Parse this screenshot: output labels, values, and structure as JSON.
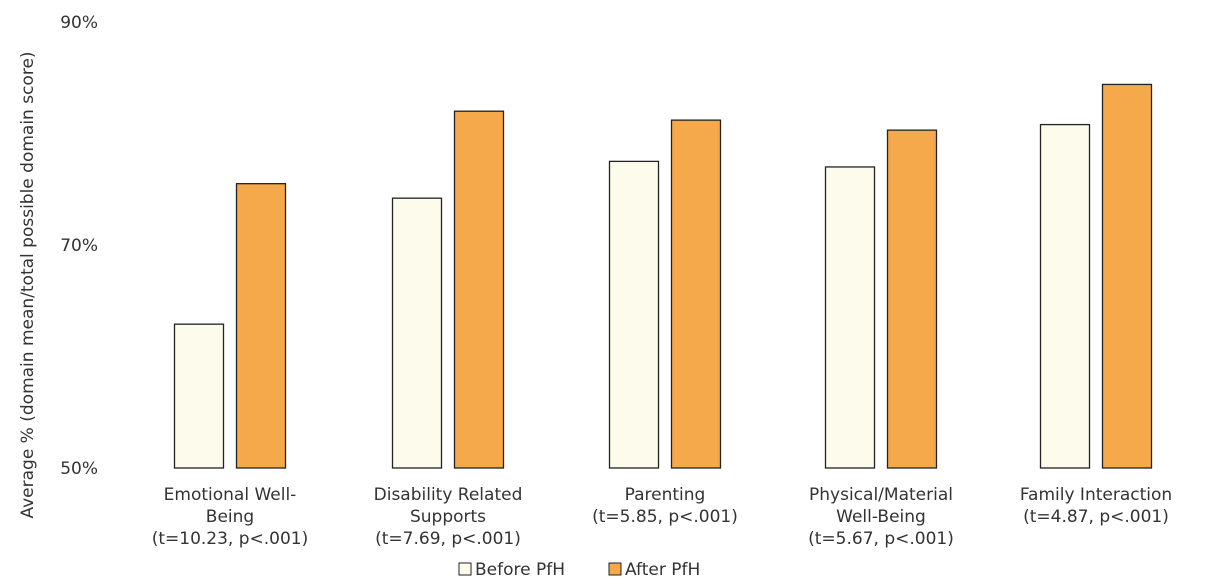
{
  "chart_data": {
    "type": "bar",
    "ylabel": "Average % (domain mean/total possible domain score)",
    "ylim": [
      50,
      90
    ],
    "yticks": [
      "50%",
      "70%",
      "90%"
    ],
    "ytick_values": [
      50,
      70,
      90
    ],
    "grid": false,
    "legend_position": "bottom-center",
    "categories": [
      [
        "Emotional Well-",
        "Being",
        "(t=10.23, p<.001)"
      ],
      [
        "Disability Related",
        "Supports",
        "(t=7.69, p<.001)"
      ],
      [
        "Parenting",
        "(t=5.85, p<.001)"
      ],
      [
        "Physical/Material",
        "Well-Being",
        "(t=5.67, p<.001)"
      ],
      [
        "Family Interaction",
        "(t=4.87, p<.001)"
      ]
    ],
    "series": [
      {
        "name": "Before PfH",
        "color": "#fdfcec",
        "values": [
          62.9,
          74.2,
          77.5,
          77.0,
          80.8
        ]
      },
      {
        "name": "After PfH",
        "color": "#f5a94a",
        "values": [
          75.5,
          82.0,
          81.2,
          80.3,
          84.4
        ]
      }
    ],
    "legend": [
      "Before PfH",
      "After PfH"
    ],
    "colors": {
      "stroke": "#222222",
      "text": "#333333"
    }
  }
}
